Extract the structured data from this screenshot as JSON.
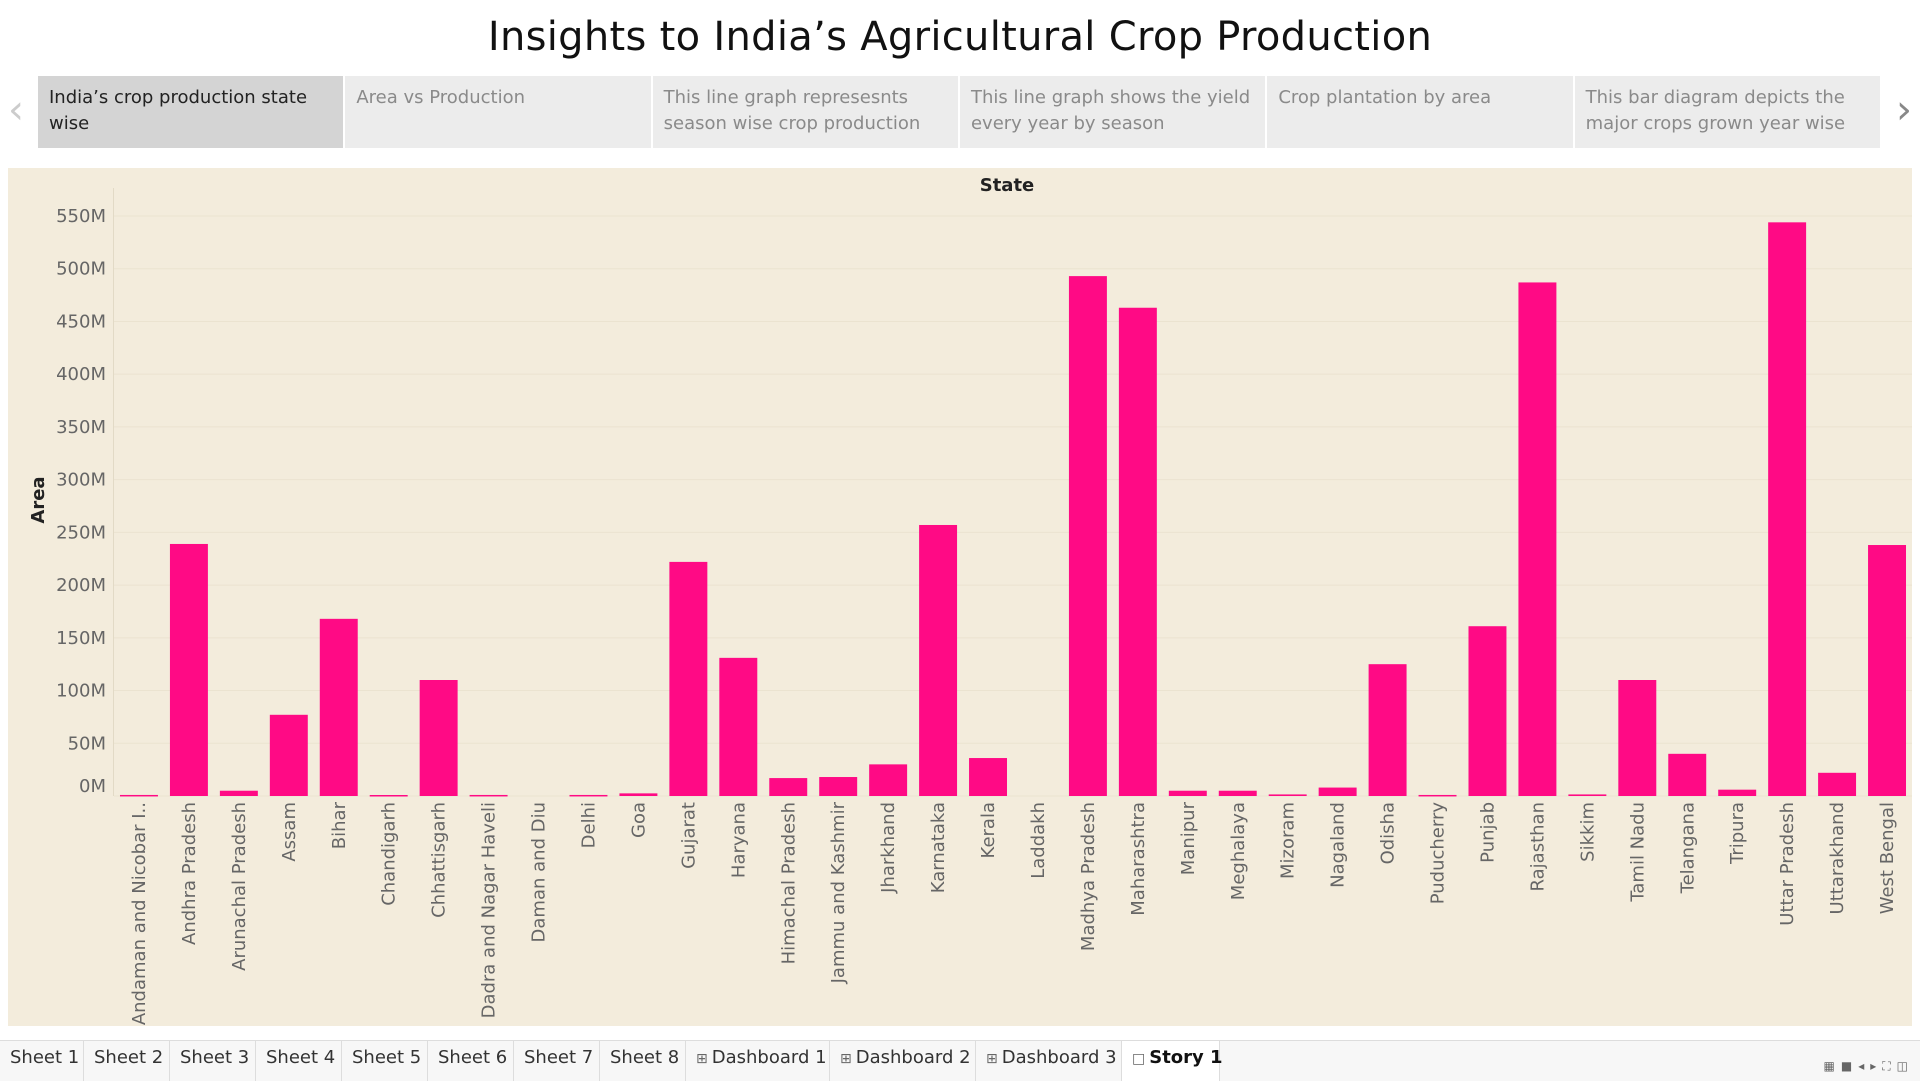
{
  "title": "Insights to India’s Agricultural Crop Production",
  "story_points": [
    {
      "label": "India’s crop production state wise",
      "active": true
    },
    {
      "label": "Area vs Production",
      "active": false
    },
    {
      "label": "This line graph represesnts season wise crop production",
      "active": false
    },
    {
      "label": "This line graph shows the yield every year by season",
      "active": false
    },
    {
      "label": "Crop plantation by area",
      "active": false
    },
    {
      "label": "This bar diagram depicts the major crops grown year wise",
      "active": false
    }
  ],
  "nav": {
    "prev_icon": "chevron-left-icon",
    "next_icon": "chevron-right-icon"
  },
  "chart_data": {
    "type": "bar",
    "title": "State",
    "ylabel": "Area",
    "xlabel": "",
    "ylim": [
      0,
      550000000
    ],
    "yticks": [
      0,
      50000000,
      100000000,
      150000000,
      200000000,
      250000000,
      300000000,
      350000000,
      400000000,
      450000000,
      500000000,
      550000000
    ],
    "ytick_labels": [
      "0M",
      "50M",
      "100M",
      "150M",
      "200M",
      "250M",
      "300M",
      "350M",
      "400M",
      "450M",
      "500M",
      "550M"
    ],
    "bar_color": "#ff0a85",
    "background_color": "#f3ecdc",
    "grid": true,
    "categories": [
      "Andaman and Nicobar I..",
      "Andhra Pradesh",
      "Arunachal Pradesh",
      "Assam",
      "Bihar",
      "Chandigarh",
      "Chhattisgarh",
      "Dadra and Nagar Haveli",
      "Daman and Diu",
      "Delhi",
      "Goa",
      "Gujarat",
      "Haryana",
      "Himachal Pradesh",
      "Jammu and Kashmir",
      "Jharkhand",
      "Karnataka",
      "Kerala",
      "Laddakh",
      "Madhya Pradesh",
      "Maharashtra",
      "Manipur",
      "Meghalaya",
      "Mizoram",
      "Nagaland",
      "Odisha",
      "Puducherry",
      "Punjab",
      "Rajasthan",
      "Sikkim",
      "Tamil Nadu",
      "Telangana",
      "Tripura",
      "Uttar Pradesh",
      "Uttarakhand",
      "West Bengal"
    ],
    "values": [
      1000000,
      239000000,
      5000000,
      77000000,
      168000000,
      100000,
      110000000,
      1000000,
      0,
      1000000,
      2500000,
      222000000,
      131000000,
      17000000,
      18000000,
      30000000,
      257000000,
      36000000,
      0,
      493000000,
      463000000,
      5000000,
      5000000,
      1500000,
      8000000,
      125000000,
      1000000,
      161000000,
      487000000,
      1500000,
      110000000,
      40000000,
      6000000,
      544000000,
      22000000,
      238000000
    ]
  },
  "sheet_tabs": [
    {
      "label": "Sheet 1",
      "icon": "",
      "active": false
    },
    {
      "label": "Sheet 2",
      "icon": "",
      "active": false
    },
    {
      "label": "Sheet 3",
      "icon": "",
      "active": false
    },
    {
      "label": "Sheet 4",
      "icon": "",
      "active": false
    },
    {
      "label": "Sheet 5",
      "icon": "",
      "active": false
    },
    {
      "label": "Sheet 6",
      "icon": "",
      "active": false
    },
    {
      "label": "Sheet 7",
      "icon": "",
      "active": false
    },
    {
      "label": "Sheet 8",
      "icon": "",
      "active": false
    },
    {
      "label": "Dashboard 1",
      "icon": "dashboard-icon",
      "active": false
    },
    {
      "label": "Dashboard 2",
      "icon": "dashboard-icon",
      "active": false
    },
    {
      "label": "Dashboard 3",
      "icon": "dashboard-icon",
      "active": false
    },
    {
      "label": "Story 1",
      "icon": "story-icon",
      "active": true
    }
  ],
  "status_bar_icons": [
    "grid-icon",
    "page-icon",
    "first-page-icon",
    "last-page-icon",
    "fullscreen-icon",
    "presentation-icon"
  ]
}
